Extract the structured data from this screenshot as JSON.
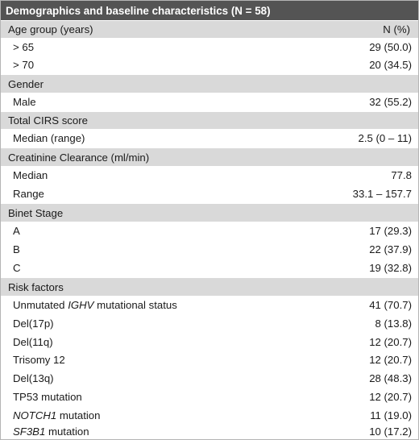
{
  "table": {
    "title": "Demographics and baseline characteristics (N = 58)",
    "header": {
      "label": "Age group (years)",
      "value": "N (%)"
    },
    "age_rows": [
      {
        "label": "> 65",
        "value": "29 (50.0)"
      },
      {
        "label": "> 70",
        "value": "20 (34.5)"
      }
    ],
    "gender": {
      "label": "Gender",
      "rows": [
        {
          "label": "Male",
          "value": "32 (55.2)"
        }
      ]
    },
    "cirs": {
      "label": "Total CIRS score",
      "rows": [
        {
          "label": "Median (range)",
          "value": "2.5 (0 – 11)"
        }
      ]
    },
    "creatinine": {
      "label": "Creatinine Clearance (ml/min)",
      "rows": [
        {
          "label": "Median",
          "value": "77.8"
        },
        {
          "label": "Range",
          "value": "33.1 – 157.7"
        }
      ]
    },
    "binet": {
      "label": "Binet Stage",
      "rows": [
        {
          "label": "A",
          "value": "17 (29.3)"
        },
        {
          "label": "B",
          "value": "22 (37.9)"
        },
        {
          "label": "C",
          "value": "19 (32.8)"
        }
      ]
    },
    "risk": {
      "label": "Risk factors",
      "rows": [
        {
          "prefix": "Unmutated ",
          "italic": "IGHV",
          "suffix": " mutational status",
          "value": "41 (70.7)"
        },
        {
          "prefix": "Del(17p)",
          "italic": "",
          "suffix": "",
          "value": "8 (13.8)"
        },
        {
          "prefix": "Del(11q)",
          "italic": "",
          "suffix": "",
          "value": "12 (20.7)"
        },
        {
          "prefix": "Trisomy 12",
          "italic": "",
          "suffix": "",
          "value": "12 (20.7)"
        },
        {
          "prefix": "Del(13q)",
          "italic": "",
          "suffix": "",
          "value": "28 (48.3)"
        },
        {
          "prefix": "TP53 mutation",
          "italic": "",
          "suffix": "",
          "value": "12 (20.7)"
        },
        {
          "prefix": "",
          "italic": "NOTCH1",
          "suffix": " mutation",
          "value": "11 (19.0)"
        },
        {
          "prefix": "",
          "italic": "SF3B1",
          "suffix": " mutation",
          "value": "10 (17.2)"
        }
      ]
    }
  }
}
